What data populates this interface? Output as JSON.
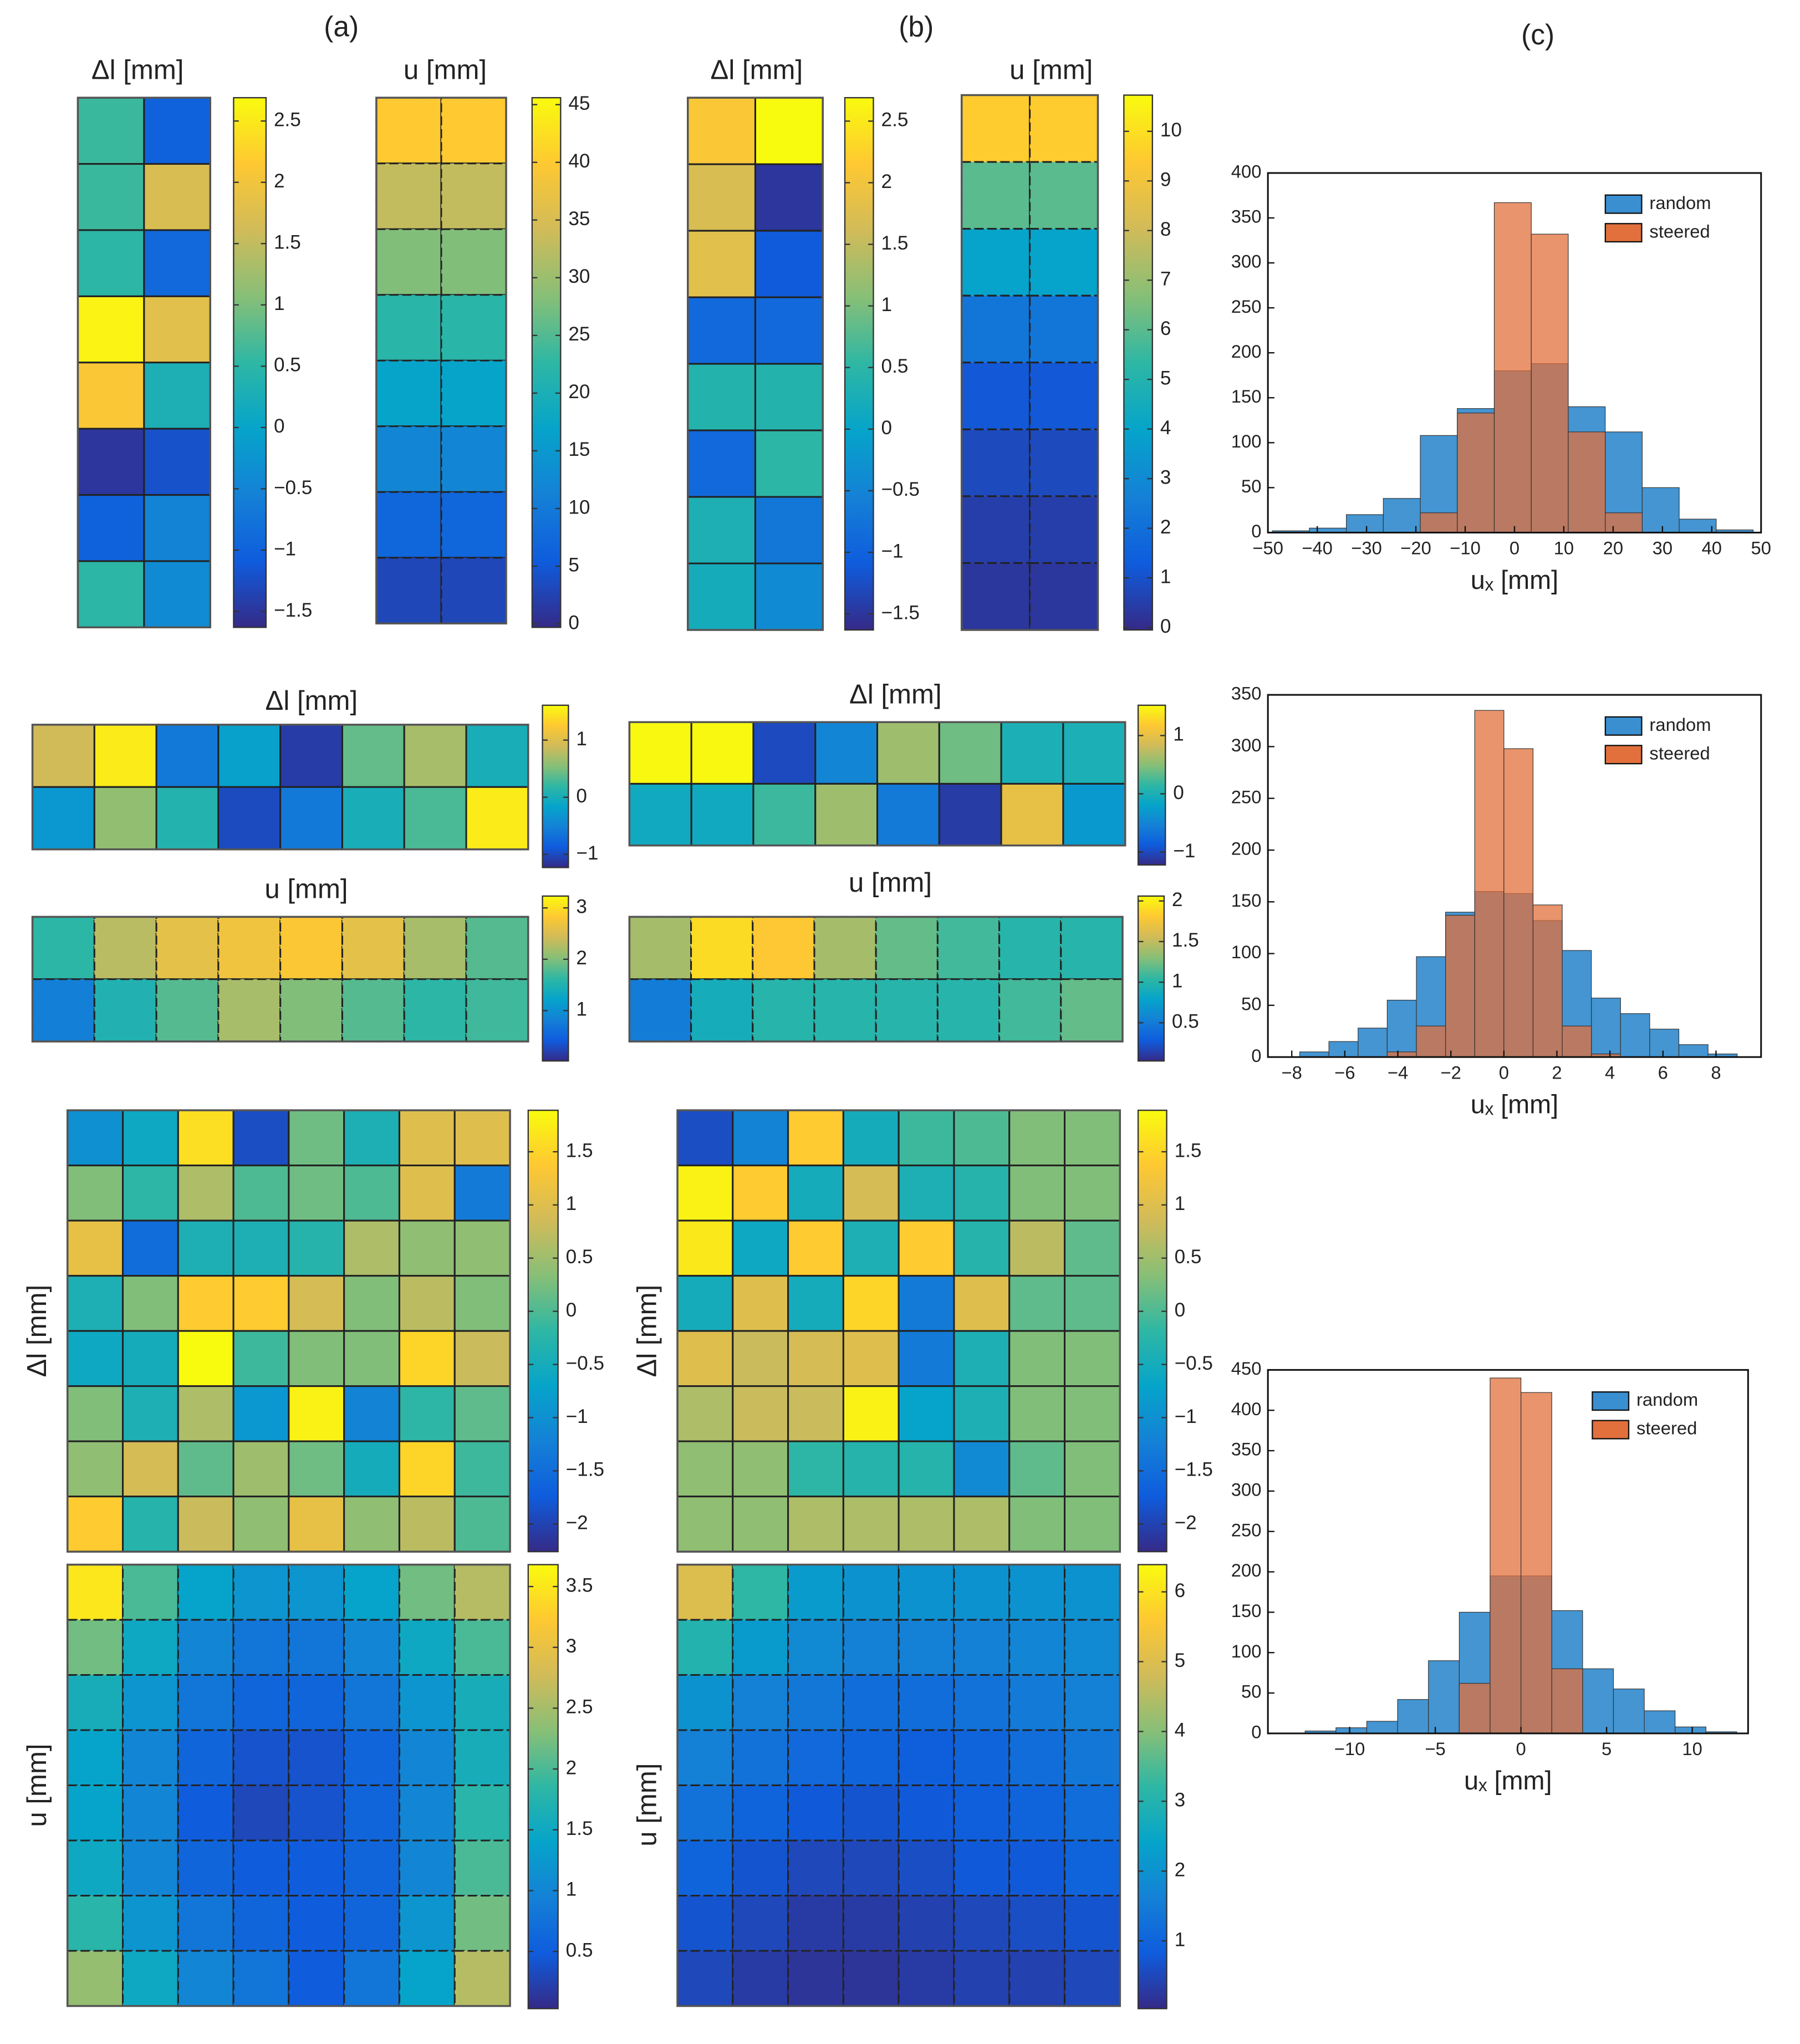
{
  "panels": [
    "(a)",
    "(b)",
    "(c)"
  ],
  "colormap": [
    "#352a87",
    "#0f5cdd",
    "#1481d6",
    "#06a4ca",
    "#2eb7a4",
    "#87bf77",
    "#d1bb59",
    "#fec832",
    "#f9fb0e"
  ],
  "chart_data": [
    {
      "type": "heatmap",
      "title": "Δl [mm]",
      "clim": [
        -1.63,
        2.69
      ],
      "cticks": [
        2.5,
        2,
        1.5,
        1,
        0.5,
        0,
        {
          "value": -0.5,
          "label": "−0.5"
        },
        {
          "value": -1,
          "label": "−1"
        },
        {
          "value": -1.5,
          "label": "−1.5"
        }
      ],
      "values": [
        [
          0.6,
          -1.0
        ],
        [
          0.6,
          1.7
        ],
        [
          0.5,
          -0.9
        ],
        [
          2.6,
          1.8
        ],
        [
          2.1,
          0.3
        ],
        [
          -1.5,
          -1.2
        ],
        [
          -1.0,
          -0.5
        ],
        [
          0.5,
          -0.4
        ]
      ]
    },
    {
      "type": "heatmap",
      "title": "u [mm]",
      "clim": [
        -0.3,
        45.6
      ],
      "cticks": [
        45,
        40,
        35,
        30,
        25,
        20,
        15,
        10,
        5,
        0
      ],
      "values": [
        [
          40,
          40
        ],
        [
          33,
          33
        ],
        [
          28,
          28
        ],
        [
          22,
          22
        ],
        [
          17,
          17
        ],
        [
          12,
          12
        ],
        [
          7,
          7
        ],
        [
          3,
          3
        ]
      ]
    },
    {
      "type": "heatmap",
      "title": "Δl [mm]",
      "clim": [
        -1.63,
        2.69
      ],
      "cticks": [
        2.5,
        2,
        1.5,
        1,
        0.5,
        0,
        {
          "value": -0.5,
          "label": "−0.5"
        },
        {
          "value": -1,
          "label": "−1"
        },
        {
          "value": -1.5,
          "label": "−1.5"
        }
      ],
      "values": [
        [
          2.1,
          2.7
        ],
        [
          1.7,
          -1.5
        ],
        [
          1.8,
          -1.1
        ],
        [
          -0.9,
          -0.9
        ],
        [
          0.4,
          0.4
        ],
        [
          -0.9,
          0.5
        ],
        [
          0.3,
          -0.7
        ],
        [
          0.2,
          -0.4
        ]
      ]
    },
    {
      "type": "heatmap",
      "title": "u [mm]",
      "clim": [
        -0.05,
        10.73
      ],
      "cticks": [
        10,
        9,
        8,
        7,
        6,
        5,
        4,
        3,
        2,
        1,
        0
      ],
      "values": [
        [
          9.5,
          9.5
        ],
        [
          6,
          6
        ],
        [
          4,
          4
        ],
        [
          2.2,
          2.2
        ],
        [
          1.2,
          1.2
        ],
        [
          0.8,
          0.8
        ],
        [
          0.5,
          0.5
        ],
        [
          0.3,
          0.3
        ]
      ]
    },
    {
      "type": "histogram",
      "xlabel": "uₓ [mm]",
      "legend": "upper right",
      "bins": [
        -49.1,
        -41.6,
        -34.1,
        -26.6,
        -19.1,
        -11.6,
        -4.1,
        3.4,
        10.9,
        18.4,
        25.9,
        33.4,
        40.9,
        48.4
      ],
      "series": [
        {
          "name": "random",
          "color": "#3a8fd0",
          "values": [
            2,
            5,
            20,
            38,
            108,
            138,
            180,
            188,
            140,
            112,
            50,
            15,
            3
          ]
        },
        {
          "name": "steered",
          "color": "#e2703c",
          "values": [
            0,
            0,
            0,
            0,
            22,
            133,
            367,
            332,
            112,
            22,
            0,
            0,
            0
          ]
        }
      ],
      "xlim": [
        -50,
        50
      ],
      "xticks": [
        {
          "value": -50,
          "label": "−50"
        },
        {
          "value": -40,
          "label": "−40"
        },
        {
          "value": -30,
          "label": "−30"
        },
        {
          "value": -20,
          "label": "−20"
        },
        {
          "value": -10,
          "label": "−10"
        },
        0,
        10,
        20,
        30,
        40,
        50
      ],
      "ylim": [
        0,
        400
      ],
      "yticks": [
        0,
        50,
        100,
        150,
        200,
        250,
        300,
        350,
        400
      ]
    },
    {
      "type": "heatmap",
      "title": "Δl [mm]",
      "clim": [
        -1.23,
        1.61
      ],
      "cticks": [
        1,
        0,
        {
          "value": -1,
          "label": "−1"
        }
      ],
      "values": [
        [
          0.9,
          1.5,
          -0.6,
          -0.2,
          -1.1,
          0.4,
          0.7,
          0.0
        ],
        [
          -0.3,
          0.6,
          0.1,
          -1.0,
          -0.6,
          0.0,
          0.3,
          1.5
        ]
      ]
    },
    {
      "type": "heatmap",
      "title": "u [mm]",
      "clim": [
        0.02,
        3.23
      ],
      "cticks": [
        3,
        2,
        1
      ],
      "values": [
        [
          1.6,
          2.3,
          2.6,
          2.7,
          2.8,
          2.6,
          2.2,
          1.8
        ],
        [
          0.8,
          1.5,
          1.8,
          2.2,
          2.0,
          1.8,
          1.6,
          1.7
        ]
      ]
    },
    {
      "type": "heatmap",
      "title": "Δl [mm]",
      "clim": [
        -1.22,
        1.52
      ],
      "cticks": [
        1,
        0,
        {
          "value": -1,
          "label": "−1"
        }
      ],
      "values": [
        [
          1.5,
          1.5,
          -1.0,
          -0.5,
          0.6,
          0.4,
          0.0,
          0.0
        ],
        [
          -0.1,
          -0.1,
          0.2,
          0.6,
          -0.6,
          -1.1,
          1.0,
          -0.3
        ]
      ]
    },
    {
      "type": "heatmap",
      "title": "u [mm]",
      "clim": [
        0.03,
        2.06
      ],
      "cticks": [
        2,
        1.5,
        1,
        0.5
      ],
      "values": [
        [
          1.4,
          1.9,
          1.8,
          1.4,
          1.2,
          1.1,
          1.0,
          1.0
        ],
        [
          0.5,
          0.9,
          1.0,
          1.0,
          1.0,
          1.0,
          1.1,
          1.2
        ]
      ]
    },
    {
      "type": "histogram",
      "xlabel": "uₓ [mm]",
      "legend": "upper right",
      "bins": [
        -7.7,
        -6.6,
        -5.5,
        -4.4,
        -3.3,
        -2.2,
        -1.1,
        0,
        1.1,
        2.2,
        3.3,
        4.4,
        5.5,
        6.6,
        7.7,
        8.8
      ],
      "series": [
        {
          "name": "random",
          "color": "#3a8fd0",
          "values": [
            5,
            15,
            28,
            55,
            97,
            140,
            160,
            158,
            132,
            103,
            57,
            42,
            27,
            12,
            3
          ]
        },
        {
          "name": "steered",
          "color": "#e2703c",
          "values": [
            0,
            0,
            0,
            5,
            30,
            137,
            335,
            298,
            147,
            30,
            3,
            0,
            0,
            0,
            0
          ]
        }
      ],
      "xlim": [
        -8.9,
        9.7
      ],
      "xticks": [
        {
          "value": -8,
          "label": "−8"
        },
        {
          "value": -6,
          "label": "−6"
        },
        {
          "value": -4,
          "label": "−4"
        },
        {
          "value": -2,
          "label": "−2"
        },
        0,
        2,
        4,
        6,
        8
      ],
      "ylim": [
        0,
        350
      ],
      "yticks": [
        0,
        50,
        100,
        150,
        200,
        250,
        300,
        350
      ]
    },
    {
      "type": "heatmap",
      "ylabel": "Δl [mm]",
      "clim": [
        -2.26,
        1.89
      ],
      "cticks": [
        1.5,
        1,
        0.5,
        0,
        {
          "value": -0.5,
          "label": "−0.5"
        },
        {
          "value": -1,
          "label": "−1"
        },
        {
          "value": -1.5,
          "label": "−1.5"
        },
        {
          "value": -2,
          "label": "−2"
        }
      ],
      "values": [
        [
          -1.0,
          -0.6,
          1.6,
          -1.9,
          0.2,
          -0.4,
          1.0,
          1.0
        ],
        [
          0.3,
          -0.2,
          0.6,
          0.0,
          0.2,
          0.0,
          1.0,
          -1.3
        ],
        [
          1.1,
          -1.5,
          -0.4,
          -0.4,
          -0.3,
          0.6,
          0.4,
          0.4
        ],
        [
          -0.4,
          0.3,
          1.4,
          1.4,
          0.9,
          0.3,
          0.7,
          0.3
        ],
        [
          -0.6,
          -0.5,
          1.9,
          -0.1,
          0.3,
          0.3,
          1.5,
          0.8
        ],
        [
          0.3,
          -0.4,
          0.6,
          -0.9,
          1.8,
          -1.2,
          -0.2,
          0.1
        ],
        [
          0.4,
          0.9,
          0.1,
          0.5,
          0.2,
          -0.5,
          1.5,
          -0.1
        ],
        [
          1.4,
          -0.3,
          0.8,
          0.4,
          1.1,
          0.4,
          0.7,
          0.0
        ]
      ]
    },
    {
      "type": "heatmap",
      "ylabel": "u [mm]",
      "clim": [
        0.03,
        3.68
      ],
      "cticks": [
        3.5,
        3,
        2.5,
        2,
        1.5,
        1,
        0.5
      ],
      "values": [
        [
          3.5,
          2.0,
          1.4,
          1.2,
          1.2,
          1.4,
          2.2,
          2.6
        ],
        [
          2.2,
          1.5,
          1.0,
          0.8,
          0.8,
          1.0,
          1.5,
          2.0
        ],
        [
          1.6,
          1.2,
          0.8,
          0.6,
          0.6,
          0.8,
          1.2,
          1.6
        ],
        [
          1.4,
          1.0,
          0.6,
          0.4,
          0.4,
          0.6,
          1.0,
          1.6
        ],
        [
          1.4,
          1.0,
          0.5,
          0.3,
          0.4,
          0.6,
          1.0,
          1.8
        ],
        [
          1.5,
          1.0,
          0.6,
          0.5,
          0.5,
          0.6,
          1.0,
          2.0
        ],
        [
          1.8,
          1.2,
          0.8,
          0.6,
          0.5,
          0.6,
          1.2,
          2.2
        ],
        [
          2.4,
          1.5,
          1.0,
          0.8,
          0.5,
          0.8,
          1.4,
          2.6
        ]
      ]
    },
    {
      "type": "heatmap",
      "ylabel": "Δl [mm]",
      "clim": [
        -2.26,
        1.89
      ],
      "cticks": [
        1.5,
        1,
        0.5,
        0,
        {
          "value": -0.5,
          "label": "−0.5"
        },
        {
          "value": -1,
          "label": "−1"
        },
        {
          "value": -1.5,
          "label": "−1.5"
        },
        {
          "value": -2,
          "label": "−2"
        }
      ],
      "values": [
        [
          -1.9,
          -1.2,
          1.4,
          -0.5,
          -0.1,
          0.0,
          0.3,
          0.3
        ],
        [
          1.8,
          1.4,
          -0.5,
          0.9,
          -0.4,
          -0.3,
          0.3,
          0.3
        ],
        [
          1.7,
          -0.6,
          1.4,
          -0.4,
          1.4,
          -0.3,
          0.7,
          0.1
        ],
        [
          -0.5,
          1.0,
          -0.5,
          1.5,
          -1.3,
          1.0,
          0.1,
          0.1
        ],
        [
          1.0,
          0.8,
          0.9,
          1.0,
          -1.3,
          -0.4,
          0.3,
          0.3
        ],
        [
          0.6,
          0.8,
          0.8,
          1.8,
          -0.7,
          -0.4,
          0.3,
          0.3
        ],
        [
          0.4,
          0.4,
          -0.2,
          -0.3,
          -0.3,
          -1.1,
          0.1,
          0.3
        ],
        [
          0.4,
          0.4,
          0.6,
          0.6,
          0.6,
          0.6,
          0.3,
          0.3
        ]
      ]
    },
    {
      "type": "heatmap",
      "ylabel": "u [mm]",
      "clim": [
        0.03,
        6.39
      ],
      "cticks": [
        6,
        5,
        4,
        3,
        2,
        1
      ],
      "values": [
        [
          5.0,
          3.2,
          2.2,
          2.0,
          2.0,
          2.0,
          2.0,
          2.0
        ],
        [
          3.0,
          2.2,
          1.8,
          1.6,
          1.6,
          1.6,
          1.7,
          1.8
        ],
        [
          2.0,
          1.6,
          1.4,
          1.2,
          1.2,
          1.3,
          1.5,
          1.6
        ],
        [
          1.6,
          1.3,
          1.1,
          1.0,
          0.9,
          1.0,
          1.2,
          1.4
        ],
        [
          1.3,
          1.0,
          0.8,
          0.7,
          0.8,
          0.9,
          1.0,
          1.2
        ],
        [
          1.0,
          0.7,
          0.5,
          0.5,
          0.6,
          0.8,
          0.8,
          1.0
        ],
        [
          0.7,
          0.5,
          0.3,
          0.3,
          0.4,
          0.5,
          0.6,
          0.7
        ],
        [
          0.5,
          0.3,
          0.2,
          0.2,
          0.3,
          0.4,
          0.4,
          0.5
        ]
      ]
    },
    {
      "type": "histogram",
      "xlabel": "uₓ [mm]",
      "legend": "upper right",
      "bins": [
        -12.6,
        -10.8,
        -9,
        -7.2,
        -5.4,
        -3.6,
        -1.8,
        0,
        1.8,
        3.6,
        5.4,
        7.2,
        9,
        10.8,
        12.6
      ],
      "series": [
        {
          "name": "random",
          "color": "#3a8fd0",
          "values": [
            3,
            7,
            15,
            42,
            90,
            150,
            195,
            195,
            152,
            80,
            55,
            28,
            8,
            2
          ]
        },
        {
          "name": "steered",
          "color": "#e2703c",
          "values": [
            0,
            0,
            0,
            0,
            0,
            62,
            440,
            422,
            80,
            0,
            0,
            0,
            0,
            0
          ]
        }
      ],
      "xlim": [
        -14.77,
        13.26
      ],
      "xticks": [
        {
          "value": -10,
          "label": "−10"
        },
        {
          "value": -5,
          "label": "−5"
        },
        0,
        5,
        10
      ],
      "ylim": [
        0,
        450
      ],
      "yticks": [
        0,
        50,
        100,
        150,
        200,
        250,
        300,
        350,
        400,
        450
      ]
    }
  ]
}
